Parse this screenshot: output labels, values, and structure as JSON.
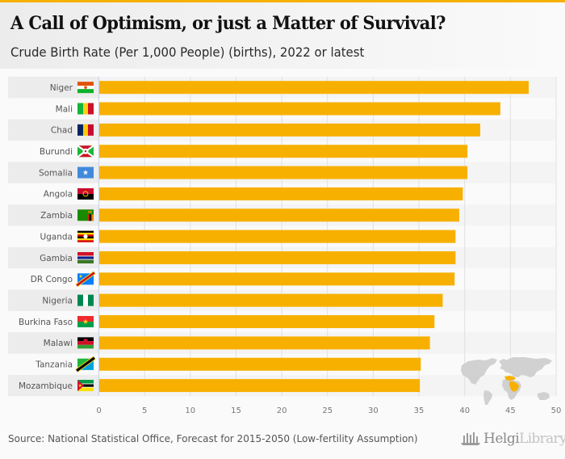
{
  "header": {
    "title": "A Call of Optimism, or just a Matter of Survival?",
    "subtitle": "Crude Birth Rate (Per 1,000 People) (births), 2022 or latest"
  },
  "footer": {
    "source": "Source: National Statistical Office, Forecast for 2015-2050 (Low-fertility Assumption)",
    "logo_primary": "Helgi",
    "logo_secondary": "Library."
  },
  "colors": {
    "bar": "#f7b000",
    "band": "#ececec",
    "grid": "#e0e0e0",
    "map_land": "#cfcfcf",
    "map_highlight": "#f7b000"
  },
  "chart_data": {
    "type": "bar",
    "orientation": "horizontal",
    "title": "A Call of Optimism, or just a Matter of Survival?",
    "subtitle": "Crude Birth Rate (Per 1,000 People) (births), 2022 or latest",
    "xlabel": "",
    "ylabel": "",
    "xlim": [
      0,
      50
    ],
    "xticks": [
      0,
      5,
      10,
      15,
      20,
      25,
      30,
      35,
      40,
      45,
      50
    ],
    "grid": true,
    "legend": "none",
    "categories": [
      "Niger",
      "Mali",
      "Chad",
      "Burundi",
      "Somalia",
      "Angola",
      "Zambia",
      "Uganda",
      "Gambia",
      "DR Congo",
      "Nigeria",
      "Burkina Faso",
      "Malawi",
      "Tanzania",
      "Mozambique"
    ],
    "flags": [
      "niger-flag",
      "mali-flag",
      "chad-flag",
      "burundi-flag",
      "somalia-flag",
      "angola-flag",
      "zambia-flag",
      "uganda-flag",
      "gambia-flag",
      "dr-congo-flag",
      "nigeria-flag",
      "burkina-faso-flag",
      "malawi-flag",
      "tanzania-flag",
      "mozambique-flag"
    ],
    "values": [
      47.0,
      43.9,
      41.7,
      40.3,
      40.3,
      39.8,
      39.4,
      39.0,
      39.0,
      38.9,
      37.6,
      36.7,
      36.2,
      35.2,
      35.1
    ]
  }
}
